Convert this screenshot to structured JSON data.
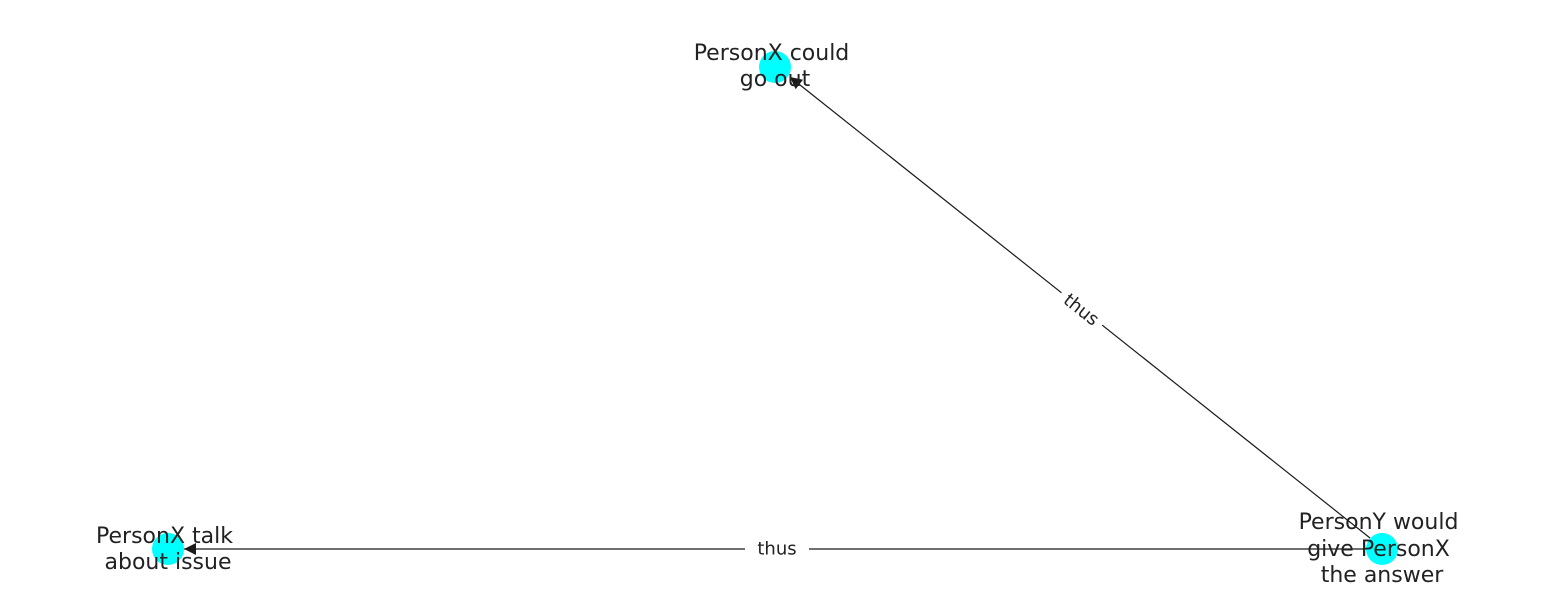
{
  "colors": {
    "node": "#00ffff",
    "edge": "#1a1a1a",
    "background": "#ffffff"
  },
  "nodes": [
    {
      "id": "go-out",
      "lines": [
        "PersonX could",
        "go out"
      ]
    },
    {
      "id": "talk-issue",
      "lines": [
        "PersonX talk",
        "about issue"
      ]
    },
    {
      "id": "give-answer",
      "lines": [
        "PersonY would",
        "give PersonX",
        "the answer"
      ]
    }
  ],
  "edges": [
    {
      "from": "give-answer",
      "to": "go-out",
      "label": "thus"
    },
    {
      "from": "give-answer",
      "to": "talk-issue",
      "label": "thus"
    }
  ]
}
